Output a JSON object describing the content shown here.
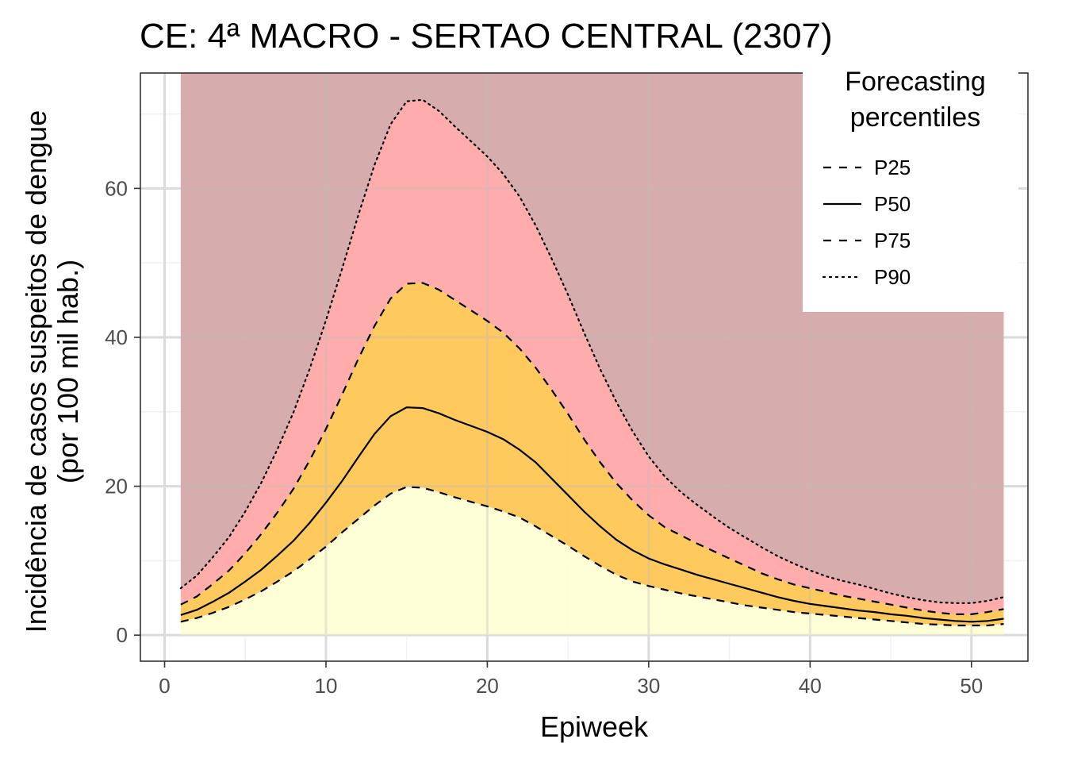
{
  "chart_data": {
    "type": "area",
    "title": "CE: 4ª MACRO - SERTAO CENTRAL (2307)",
    "xlabel": "Epiweek",
    "ylabel_line1": "Incidência de casos suspeitos de dengue",
    "ylabel_line2": "(por 100 mil hab.)",
    "xlim": [
      -1.5,
      53.5
    ],
    "ylim": [
      -3.5,
      75.5
    ],
    "x_ticks": [
      0,
      10,
      20,
      30,
      40,
      50
    ],
    "y_ticks": [
      0,
      20,
      40,
      60
    ],
    "grid": true,
    "legend": {
      "title_line1": "Forecasting",
      "title_line2": "percentiles",
      "position": "top-right",
      "entries": [
        {
          "label": "P25",
          "linetype": "dashed"
        },
        {
          "label": "P50",
          "linetype": "solid"
        },
        {
          "label": "P75",
          "linetype": "dashed"
        },
        {
          "label": "P90",
          "linetype": "dotted"
        }
      ]
    },
    "colors": {
      "below_p25": "#ffffd4",
      "p25_p75": "#fec44f",
      "p75_p90": "#ffa5a5",
      "above_p90": "#d4a5a5",
      "line": "#000000"
    },
    "x": [
      1,
      2,
      3,
      4,
      5,
      6,
      7,
      8,
      9,
      10,
      11,
      12,
      13,
      14,
      15,
      16,
      17,
      18,
      19,
      20,
      21,
      22,
      23,
      24,
      25,
      26,
      27,
      28,
      29,
      30,
      31,
      32,
      33,
      34,
      35,
      36,
      37,
      38,
      39,
      40,
      41,
      42,
      43,
      44,
      45,
      46,
      47,
      48,
      49,
      50,
      51,
      52
    ],
    "series": [
      {
        "name": "P25",
        "values": [
          1.8,
          2.3,
          3,
          3.8,
          4.8,
          5.9,
          7.2,
          8.6,
          10.2,
          11.9,
          13.8,
          15.6,
          17.4,
          19,
          19.9,
          19.8,
          19.2,
          18.5,
          17.9,
          17.3,
          16.6,
          15.8,
          14.6,
          13.3,
          12,
          10.6,
          9.3,
          8.1,
          7.2,
          6.6,
          6.1,
          5.6,
          5.2,
          4.8,
          4.4,
          4,
          3.7,
          3.4,
          3.1,
          2.9,
          2.7,
          2.5,
          2.3,
          2.1,
          1.9,
          1.7,
          1.5,
          1.4,
          1.3,
          1.3,
          1.3,
          1.5
        ]
      },
      {
        "name": "P50",
        "values": [
          2.7,
          3.4,
          4.5,
          5.7,
          7.2,
          8.8,
          10.7,
          12.7,
          15.1,
          17.8,
          20.7,
          23.9,
          27,
          29.4,
          30.6,
          30.5,
          29.8,
          28.9,
          28.1,
          27.3,
          26.3,
          24.9,
          23.2,
          21,
          18.8,
          16.6,
          14.6,
          12.8,
          11.4,
          10.3,
          9.5,
          8.8,
          8.1,
          7.5,
          6.9,
          6.3,
          5.7,
          5.1,
          4.6,
          4.2,
          3.9,
          3.6,
          3.3,
          3.1,
          2.8,
          2.6,
          2.3,
          2.1,
          1.9,
          1.8,
          1.9,
          2.2
        ]
      },
      {
        "name": "P75",
        "values": [
          4.1,
          5.2,
          6.9,
          8.7,
          11,
          13.6,
          16.5,
          19.7,
          23.5,
          27.7,
          32.3,
          37.1,
          41.5,
          45.2,
          47.2,
          47.3,
          46.4,
          45,
          43.6,
          42.2,
          40.6,
          38.5,
          35.9,
          32.9,
          29.7,
          26.3,
          23.2,
          20.4,
          18.1,
          16.1,
          14.5,
          13.4,
          12.3,
          11.3,
          10.3,
          9.3,
          8.3,
          7.5,
          6.8,
          6.3,
          5.8,
          5.3,
          4.9,
          4.5,
          4.1,
          3.7,
          3.3,
          3,
          2.8,
          2.8,
          3.1,
          3.5
        ]
      },
      {
        "name": "P90",
        "values": [
          6.3,
          8,
          10.5,
          13.2,
          16.6,
          20.5,
          25,
          30,
          35.8,
          42.3,
          49.2,
          56.4,
          63.1,
          68.6,
          71.7,
          71.9,
          70.4,
          68.3,
          66.3,
          64.3,
          61.9,
          58.9,
          55,
          50.5,
          45.7,
          40.6,
          35.7,
          31.3,
          27.4,
          24,
          21.3,
          19.2,
          17.5,
          15.9,
          14.4,
          13.1,
          11.8,
          10.6,
          9.6,
          8.7,
          7.9,
          7.3,
          6.8,
          6.2,
          5.6,
          5.1,
          4.7,
          4.4,
          4.3,
          4.3,
          4.6,
          5.1
        ]
      }
    ]
  }
}
